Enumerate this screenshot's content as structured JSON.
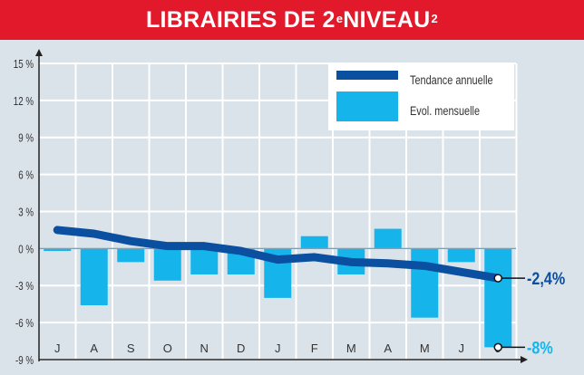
{
  "title": {
    "text_before": "LIBRAIRIES DE 2",
    "sup1": "e",
    "text_after": " NIVEAU",
    "sup2": "2"
  },
  "colors": {
    "title_bg": "#e2192b",
    "background": "#dbe3ea",
    "grid": "#ffffff",
    "trend_line": "#0b4fa0",
    "monthly_bars": "#15b4eb"
  },
  "chart_data": {
    "type": "bar+line",
    "categories": [
      "J",
      "A",
      "S",
      "O",
      "N",
      "D",
      "J",
      "F",
      "M",
      "A",
      "M",
      "J",
      "J"
    ],
    "y_ticks": [
      "15 %",
      "12 %",
      "9 %",
      "6 %",
      "3 %",
      "0 %",
      "-3 %",
      "-6 %",
      "-9 %"
    ],
    "ylim": [
      -9,
      15
    ],
    "grid": true,
    "legend_position": "top-right",
    "series": [
      {
        "name": "Tendance annuelle",
        "type": "line",
        "values": [
          1.5,
          1.2,
          0.6,
          0.2,
          0.2,
          -0.2,
          -0.9,
          -0.7,
          -1.1,
          -1.2,
          -1.4,
          -1.9,
          -2.4
        ]
      },
      {
        "name": "Evol. mensuelle",
        "type": "bar",
        "values": [
          -0.2,
          -4.6,
          -1.1,
          -2.6,
          -2.1,
          -2.1,
          -4.0,
          1.0,
          -2.1,
          1.6,
          -5.6,
          -1.1,
          -8.0
        ]
      }
    ],
    "annotations": [
      {
        "series": "Tendance annuelle",
        "text": "-2,4%",
        "color": "#0b4fa0"
      },
      {
        "series": "Evol. mensuelle",
        "text": "-8%",
        "color": "#15b4eb"
      }
    ]
  }
}
